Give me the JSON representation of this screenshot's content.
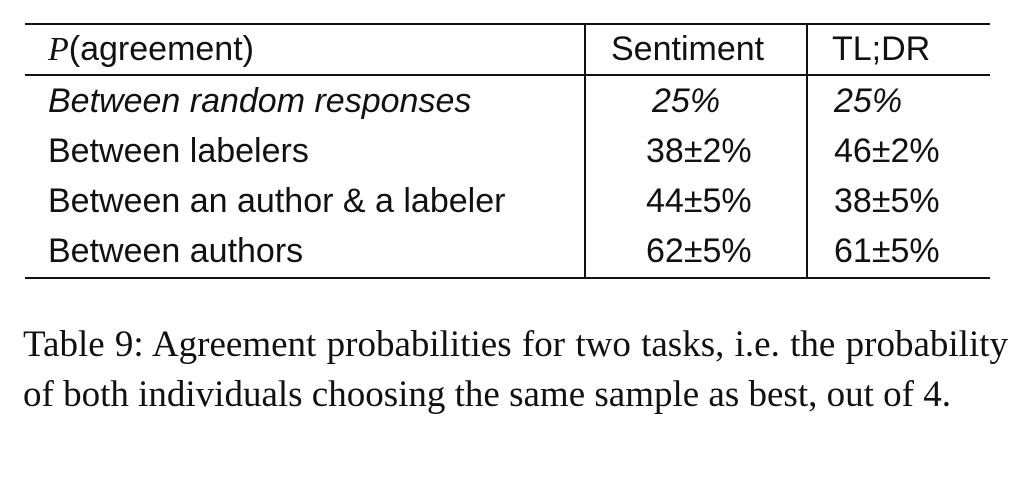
{
  "table": {
    "header": {
      "col0_var": "P",
      "col0_rest": "(agreement)",
      "col1": "Sentiment",
      "col2": "TL;DR"
    },
    "rows": [
      {
        "label": "Between random responses",
        "sentiment": "25%",
        "tldr": "25%",
        "italic": true
      },
      {
        "label": "Between labelers",
        "sentiment": "38±2%",
        "tldr": "46±2%"
      },
      {
        "label": "Between an author & a labeler",
        "sentiment": "44±5%",
        "tldr": "38±5%"
      },
      {
        "label": "Between authors",
        "sentiment": "62±5%",
        "tldr": "61±5%"
      }
    ]
  },
  "caption": "Table 9:  Agreement probabilities for two tasks, i.e. the probability of both individuals choosing the same sample as best, out of 4."
}
